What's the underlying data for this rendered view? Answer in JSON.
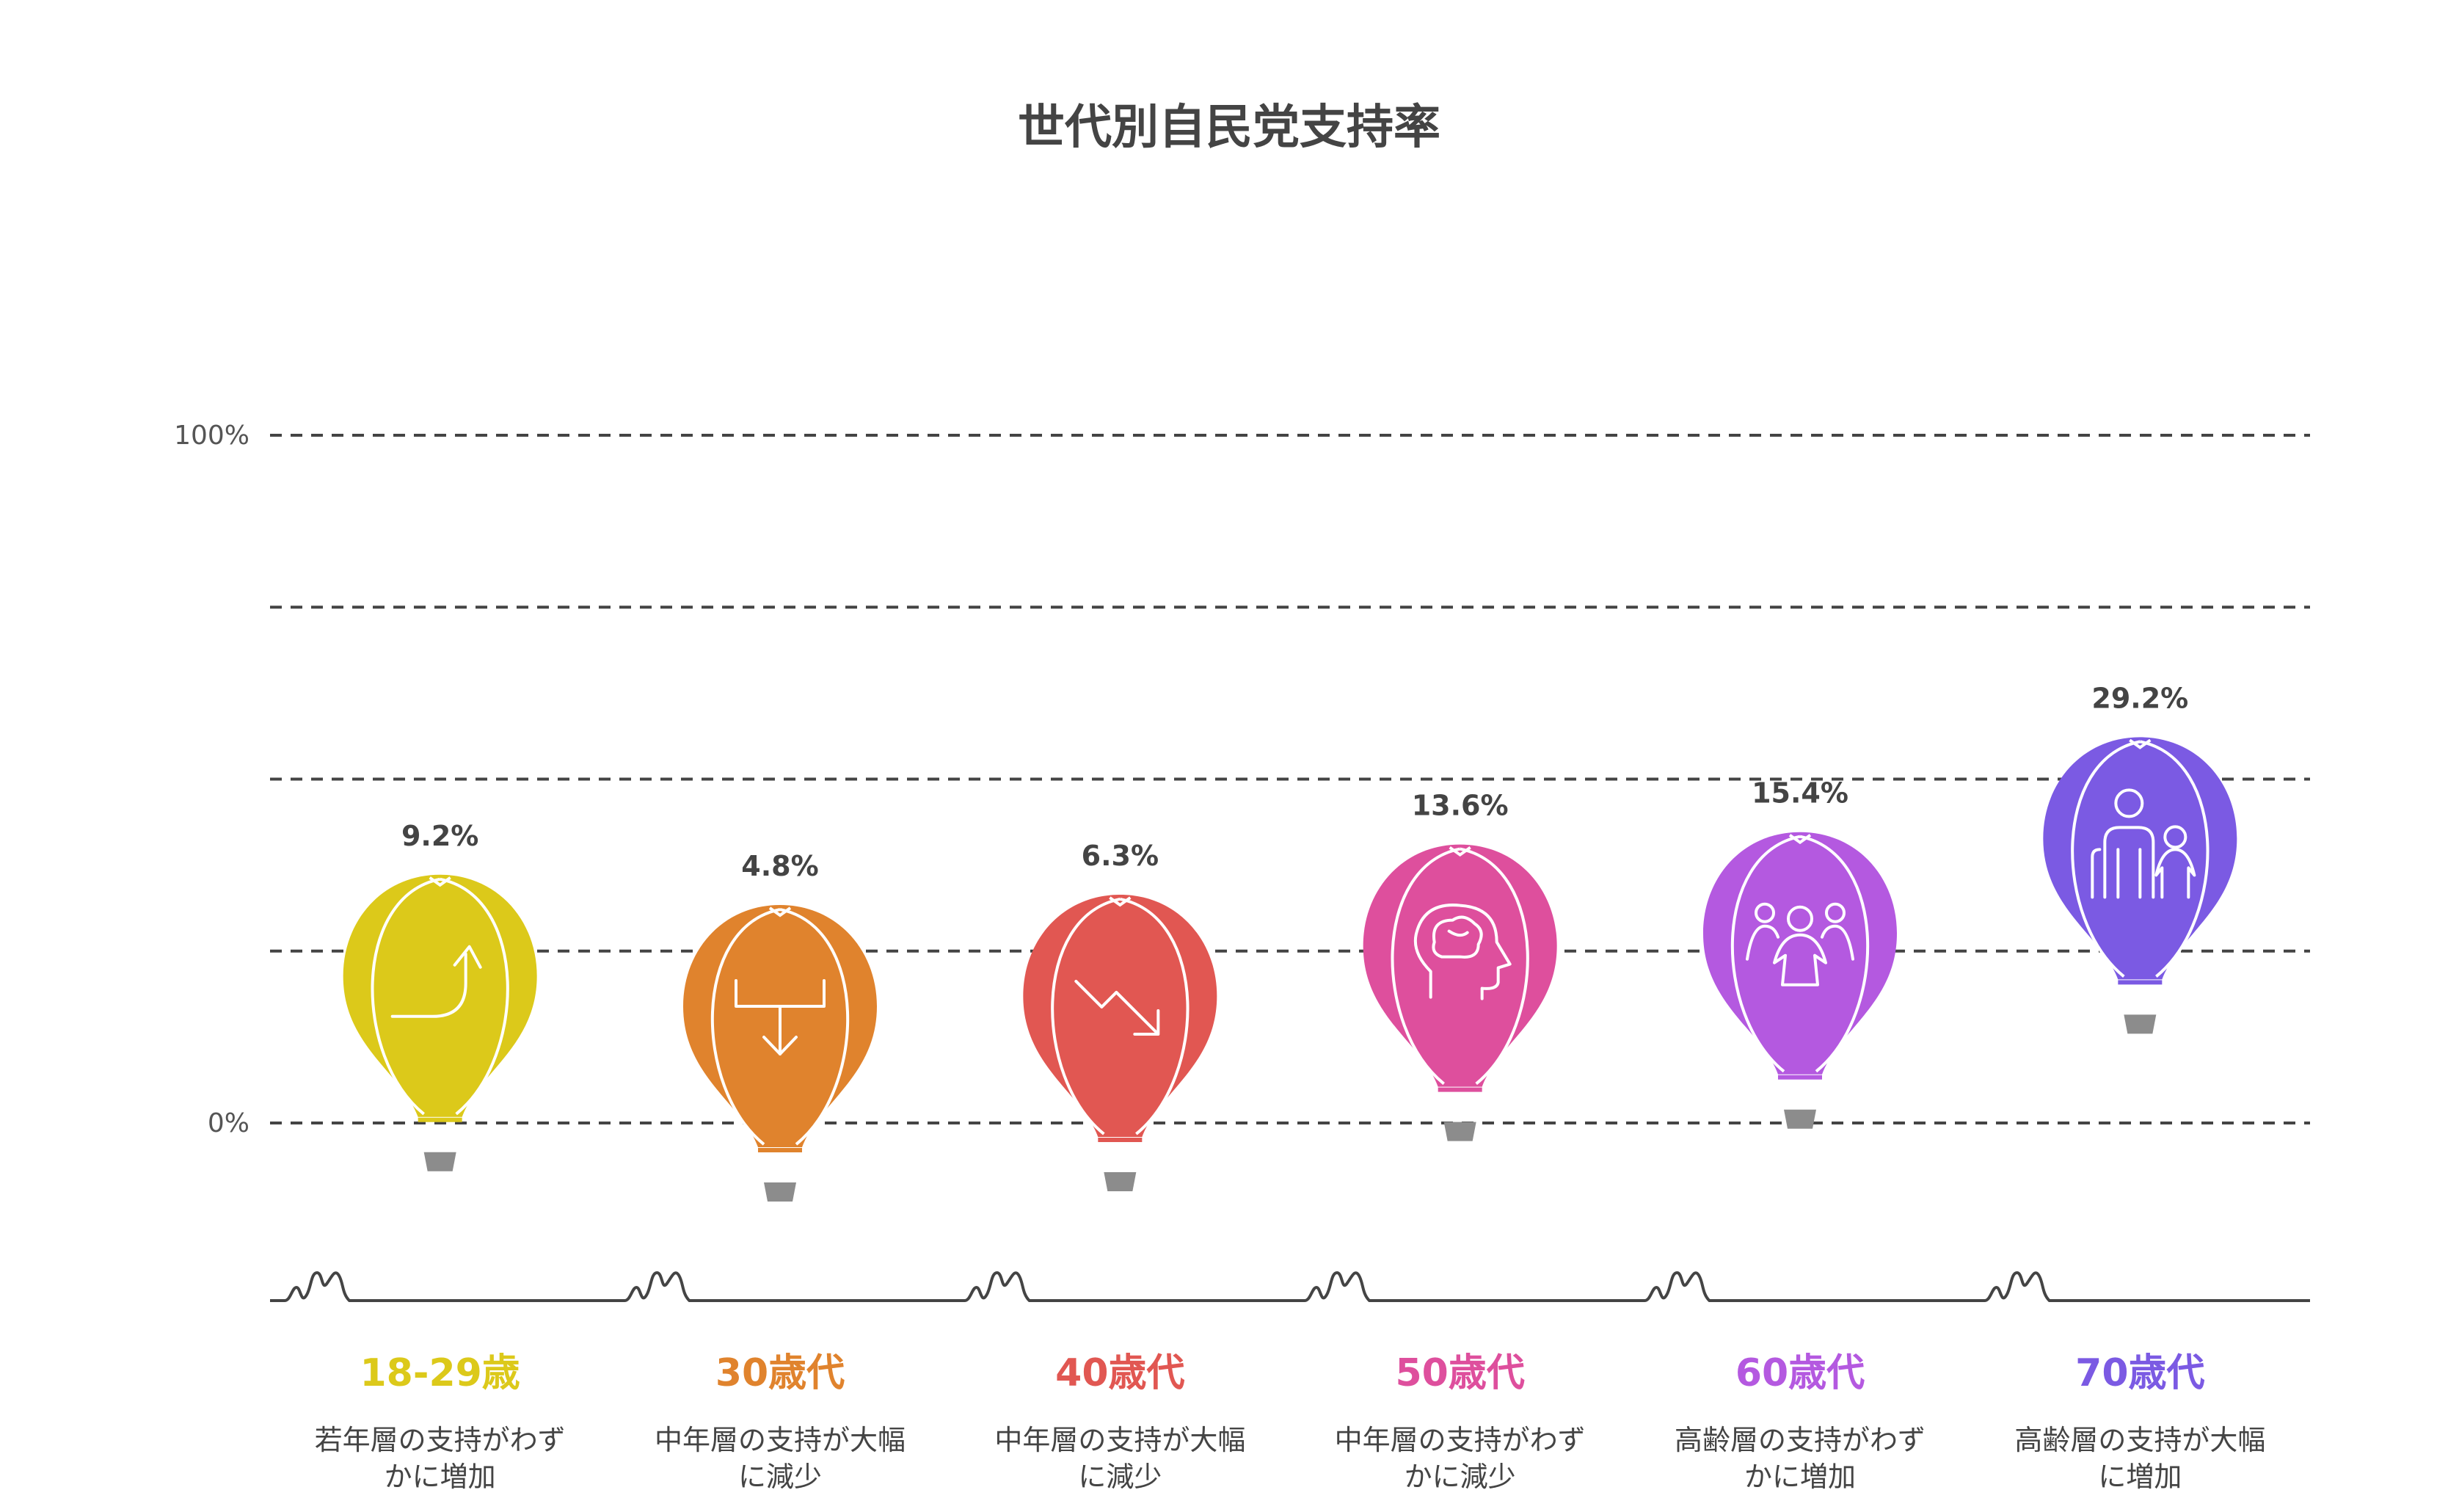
{
  "chart_data": {
    "type": "bar",
    "title": "世代別自民党支持率",
    "xlabel": "",
    "ylabel": "",
    "ylim": [
      0,
      100
    ],
    "y_tick_labels": [
      "0%",
      "100%"
    ],
    "grid": true,
    "categories": [
      "18-29歳",
      "30歳代",
      "40歳代",
      "50歳代",
      "60歳代",
      "70歳代"
    ],
    "values": [
      9.2,
      4.8,
      6.3,
      13.6,
      15.4,
      29.2
    ],
    "value_labels": [
      "9.2%",
      "4.8%",
      "6.3%",
      "13.6%",
      "15.4%",
      "29.2%"
    ],
    "descriptions": [
      [
        "若年層の支持がわず",
        "かに増加"
      ],
      [
        "中年層の支持が大幅",
        "に減少"
      ],
      [
        "中年層の支持が大幅",
        "に減少"
      ],
      [
        "中年層の支持がわず",
        "かに減少"
      ],
      [
        "高齢層の支持がわず",
        "かに増加"
      ],
      [
        "高齢層の支持が大幅",
        "に増加"
      ]
    ],
    "icons": [
      "trend-up-icon",
      "arrow-down-icon",
      "trend-down-icon",
      "brain-head-icon",
      "group-icon",
      "family-icon"
    ],
    "colors": [
      "#DCC91A",
      "#E0832D",
      "#E15752",
      "#DE4F9D",
      "#B459E0",
      "#7B5AE3"
    ]
  }
}
